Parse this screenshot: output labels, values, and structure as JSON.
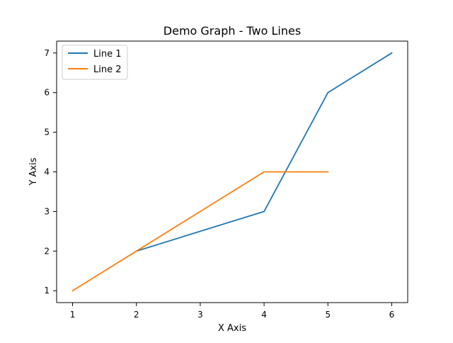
{
  "chart_data": {
    "type": "line",
    "title": "Demo Graph - Two Lines",
    "xlabel": "X Axis",
    "ylabel": "Y Axis",
    "xlim": [
      0.75,
      6.25
    ],
    "ylim": [
      0.7,
      7.3
    ],
    "x_ticks": [
      1,
      2,
      3,
      4,
      5,
      6
    ],
    "y_ticks": [
      1,
      2,
      3,
      4,
      5,
      6,
      7
    ],
    "grid": false,
    "legend_position": "top-left",
    "series": [
      {
        "name": "Line 1",
        "color": "#1f77b4",
        "x": [
          2,
          4,
          5,
          6
        ],
        "y": [
          2,
          3,
          6,
          7
        ]
      },
      {
        "name": "Line 2",
        "color": "#ff7f0e",
        "x": [
          1,
          2,
          4,
          5
        ],
        "y": [
          1,
          2,
          4,
          4
        ]
      }
    ]
  }
}
